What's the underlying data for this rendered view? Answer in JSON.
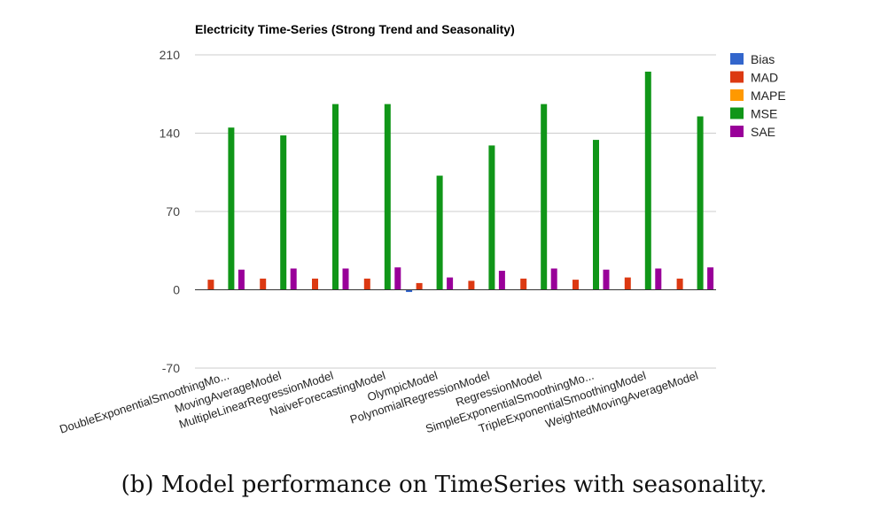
{
  "caption": "(b) Model performance on TimeSeries with seasonality.",
  "chart_data": {
    "type": "bar",
    "title": "Electricity Time-Series (Strong Trend and Seasonality)",
    "xlabel": "",
    "ylabel": "",
    "ylim": [
      -70,
      210
    ],
    "yticks": [
      210,
      140,
      70,
      0,
      -70
    ],
    "grid": true,
    "legend_position": "right",
    "categories": [
      "DoubleExponentialSmoothingMo...",
      "MovingAverageModel",
      "MultipleLinearRegressionModel",
      "NaiveForecastingModel",
      "OlympicModel",
      "PolynomialRegressionModel",
      "RegressionModel",
      "SimpleExponentialSmoothingMo...",
      "TripleExponentialSmoothingModel",
      "WeightedMovingAverageModel"
    ],
    "series": [
      {
        "name": "Bias",
        "color": "#3366cc",
        "values": [
          0,
          0,
          0,
          0,
          -2,
          0,
          0,
          0,
          0,
          0
        ]
      },
      {
        "name": "MAD",
        "color": "#dc3912",
        "values": [
          9,
          10,
          10,
          10,
          6,
          8,
          10,
          9,
          11,
          10
        ]
      },
      {
        "name": "MAPE",
        "color": "#ff9900",
        "values": [
          0,
          0,
          0,
          0,
          0,
          0,
          0,
          0,
          0,
          0
        ]
      },
      {
        "name": "MSE",
        "color": "#109618",
        "values": [
          145,
          138,
          166,
          166,
          102,
          129,
          166,
          134,
          195,
          155
        ]
      },
      {
        "name": "SAE",
        "color": "#990099",
        "values": [
          18,
          19,
          19,
          20,
          11,
          17,
          19,
          18,
          19,
          20
        ]
      }
    ]
  }
}
